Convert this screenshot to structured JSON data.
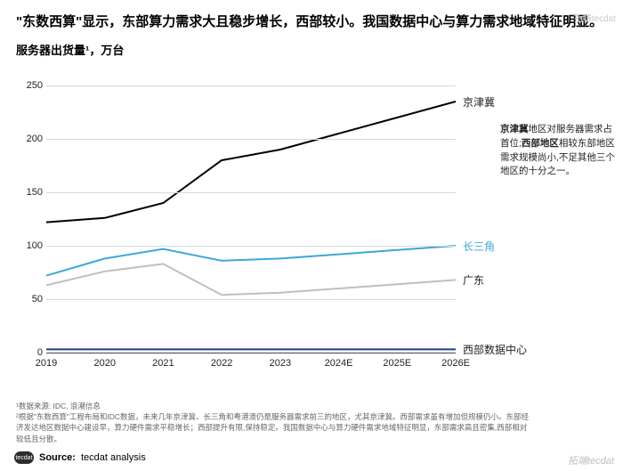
{
  "title": "\"东数西算\"显示，东部算力需求大且稳步增长，西部较小。我国数据中心与算力需求地域特征明显。",
  "subtitle": "服务器出货量¹，万台",
  "chart": {
    "type": "line",
    "categories": [
      "2019",
      "2020",
      "2021",
      "2022",
      "2023",
      "2024E",
      "2025E",
      "2026E"
    ],
    "ylim": [
      0,
      250
    ],
    "ytick_step": 50,
    "grid_color": "#d9d9d9",
    "axis_color": "#444444",
    "background_color": "#ffffff",
    "label_fontsize": 11,
    "series": [
      {
        "name": "京津冀",
        "label": "京津冀",
        "color": "#000000",
        "width": 2,
        "values": [
          122,
          126,
          140,
          180,
          190,
          205,
          220,
          235
        ]
      },
      {
        "name": "长三角",
        "label": "长三角",
        "color": "#3ca7d9",
        "width": 2,
        "values": [
          72,
          88,
          97,
          86,
          88,
          92,
          96,
          100
        ]
      },
      {
        "name": "广东",
        "label": "广东",
        "color": "#bfbfbf",
        "width": 2,
        "values": [
          63,
          76,
          83,
          54,
          56,
          60,
          64,
          68
        ]
      },
      {
        "name": "西部数据中心",
        "label": "西部数据中心",
        "color": "#1f3f8c",
        "width": 2,
        "values": [
          3,
          3,
          3,
          3,
          3,
          3,
          3,
          3
        ]
      }
    ],
    "annotation": {
      "parts": [
        {
          "t": "京津冀",
          "b": true
        },
        {
          "t": "地区对服务器需求占首位;"
        },
        {
          "t": "西部地区",
          "b": true
        },
        {
          "t": "相较东部地区需求规模尚小,不足其他三个地区的十分之一。"
        }
      ]
    }
  },
  "footnote1": "¹数据来源: IDC, 浪潮信息",
  "footnote2": "²根据\"东数西算\"工程布局和IDC数据，未来几年京津冀、长三角和粤港澳仍是服务器需求前三的地区，尤其京津冀。西部需求虽有增加但规模仍小。东部经济发达地区数据中心建设早，算力硬件需求平稳增长；西部提升有限,保持稳定。我国数据中心与算力硬件需求地域特征明显，东部需求高且密集,西部相对较低且分散。",
  "source_label": "Source:",
  "source_value": "tecdat analysis",
  "logo_text": "tecdat",
  "watermark_bottom": "拓端tecdat",
  "watermark_top": "拓端tecdat"
}
